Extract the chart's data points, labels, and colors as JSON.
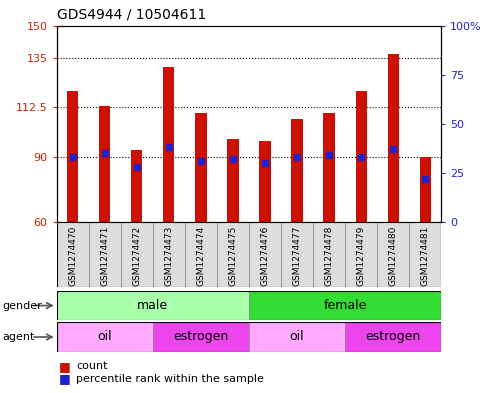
{
  "title": "GDS4944 / 10504611",
  "samples": [
    "GSM1274470",
    "GSM1274471",
    "GSM1274472",
    "GSM1274473",
    "GSM1274474",
    "GSM1274475",
    "GSM1274476",
    "GSM1274477",
    "GSM1274478",
    "GSM1274479",
    "GSM1274480",
    "GSM1274481"
  ],
  "count_values": [
    120,
    113,
    93,
    131,
    110,
    98,
    97,
    107,
    110,
    120,
    137,
    90
  ],
  "percentile_values": [
    33,
    35,
    28,
    38,
    31,
    32,
    30,
    33,
    34,
    33,
    37,
    22
  ],
  "ylim_left": [
    60,
    150
  ],
  "ylim_right": [
    0,
    100
  ],
  "yticks_left": [
    60,
    90,
    112.5,
    135,
    150
  ],
  "yticks_right": [
    0,
    25,
    50,
    75,
    100
  ],
  "ytick_labels_left": [
    "60",
    "90",
    "112.5",
    "135",
    "150"
  ],
  "ytick_labels_right": [
    "0",
    "25",
    "50",
    "75",
    "100%"
  ],
  "bar_color": "#CC1100",
  "dot_color": "#2222CC",
  "bar_bottom": 60,
  "gender_groups": [
    {
      "label": "male",
      "start": 0,
      "end": 6,
      "color": "#AAFFAA"
    },
    {
      "label": "female",
      "start": 6,
      "end": 12,
      "color": "#33DD33"
    }
  ],
  "agent_groups": [
    {
      "label": "oil",
      "start": 0,
      "end": 3,
      "color": "#FFAAFF"
    },
    {
      "label": "estrogen",
      "start": 3,
      "end": 6,
      "color": "#EE44EE"
    },
    {
      "label": "oil",
      "start": 6,
      "end": 9,
      "color": "#FFAAFF"
    },
    {
      "label": "estrogen",
      "start": 9,
      "end": 12,
      "color": "#EE44EE"
    }
  ],
  "legend_items": [
    {
      "label": "count",
      "color": "#CC1100"
    },
    {
      "label": "percentile rank within the sample",
      "color": "#2222CC"
    }
  ],
  "bar_width": 0.35,
  "dot_size": 18,
  "label_fontsize": 6.5,
  "row_fontsize": 9,
  "left_label_color": "#CC2200",
  "right_label_color": "#2222CC"
}
